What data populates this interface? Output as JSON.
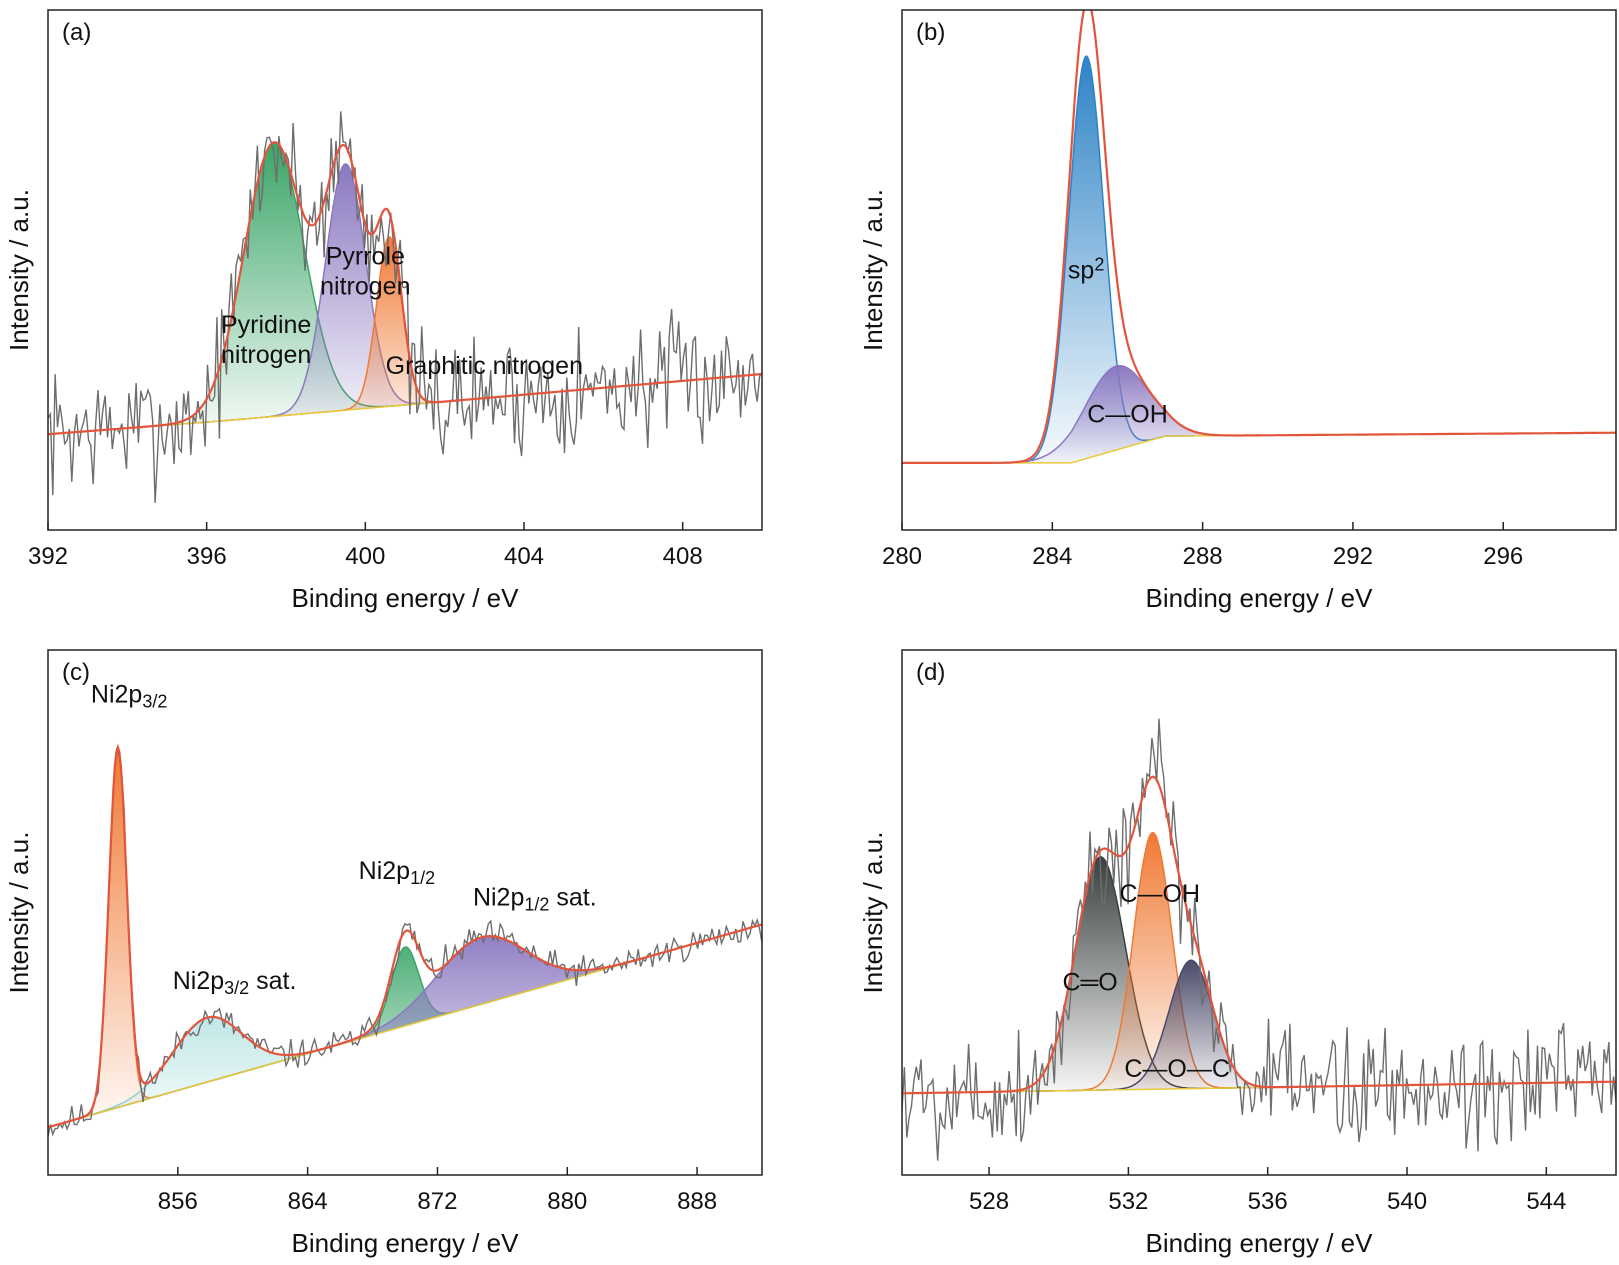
{
  "chart_data": [
    {
      "panel": "(a)",
      "type": "line",
      "xlabel": "Binding energy / eV",
      "ylabel": "Intensity / a.u.",
      "xlim": [
        392,
        410
      ],
      "xticks": [
        392,
        396,
        400,
        404,
        408
      ],
      "ylim": [
        -0.35,
        1.55
      ],
      "background": {
        "x": [
          392,
          396.5,
          410
        ],
        "y": [
          0.0,
          0.05,
          0.22
        ]
      },
      "noise": {
        "amplitude": 0.11,
        "seed": 7
      },
      "peaks": [
        {
          "label_lines": [
            "Pyridine",
            "nitrogen"
          ],
          "center": 397.7,
          "height": 1.0,
          "fwhm": 1.8,
          "color": "#3aa567",
          "label_at": [
            397.5,
            0.37
          ]
        },
        {
          "label_lines": [
            "Pyrrole",
            "nitrogen"
          ],
          "center": 399.5,
          "height": 0.9,
          "fwhm": 1.2,
          "color": "#8b78c0",
          "label_at": [
            400.0,
            0.62
          ]
        },
        {
          "label_lines": [
            "Graphitic nitrogen"
          ],
          "center": 400.6,
          "height": 0.62,
          "fwhm": 0.75,
          "color": "#f07a35",
          "label_at": [
            403.0,
            0.22
          ]
        }
      ]
    },
    {
      "panel": "(b)",
      "type": "line",
      "xlabel": "Binding energy / eV",
      "ylabel": "Intensity / a.u.",
      "xlim": [
        280,
        299
      ],
      "xticks": [
        280,
        284,
        288,
        292,
        296
      ],
      "ylim": [
        -0.2,
        1.35
      ],
      "background": {
        "x": [
          280,
          284.5,
          287.0,
          299
        ],
        "y": [
          0.0,
          0.0,
          0.08,
          0.09
        ]
      },
      "noise": {
        "amplitude": 0.0,
        "seed": 3
      },
      "peaks": [
        {
          "label_lines": [
            "sp2"
          ],
          "center": 284.9,
          "height": 1.2,
          "fwhm": 1.1,
          "color": "#2e83c6",
          "label_at": [
            284.9,
            0.55
          ]
        },
        {
          "label_lines": [
            "C—OH"
          ],
          "center": 285.7,
          "height": 0.25,
          "fwhm": 2.0,
          "color": "#8b78c0",
          "label_at": [
            286.0,
            0.12
          ]
        }
      ]
    },
    {
      "panel": "(c)",
      "type": "line",
      "xlabel": "Binding energy / eV",
      "ylabel": "Intensity / a.u.",
      "xlim": [
        848,
        892
      ],
      "xticks": [
        856,
        864,
        872,
        880,
        888
      ],
      "ylim": [
        -0.2,
        2.0
      ],
      "background": {
        "x": [
          848,
          892
        ],
        "y": [
          0.0,
          0.85
        ]
      },
      "noise": {
        "amplitude": 0.03,
        "seed": 11
      },
      "peaks": [
        {
          "label_lines": [
            "Ni2p3/2"
          ],
          "center": 852.3,
          "height": 1.5,
          "fwhm": 1.3,
          "color": "#f07a35",
          "label_at": [
            853.0,
            1.78
          ]
        },
        {
          "label_lines": [
            "Ni2p3/2 sat."
          ],
          "center": 857.8,
          "height": 0.27,
          "fwhm": 5.0,
          "color": "#8fd3d3",
          "label_at": [
            859.5,
            0.58
          ]
        },
        {
          "label_lines": [
            "Ni2p1/2"
          ],
          "center": 870.0,
          "height": 0.33,
          "fwhm": 2.0,
          "color": "#3aa567",
          "label_at": [
            869.5,
            1.04
          ]
        },
        {
          "label_lines": [
            "Ni2p1/2 sat."
          ],
          "center": 874.7,
          "height": 0.28,
          "fwhm": 6.5,
          "color": "#8b78c0",
          "label_at": [
            878.0,
            0.93
          ]
        }
      ]
    },
    {
      "panel": "(d)",
      "type": "line",
      "xlabel": "Binding energy / eV",
      "ylabel": "Intensity / a.u.",
      "xlim": [
        525.5,
        546
      ],
      "xticks": [
        528,
        532,
        536,
        540,
        544
      ],
      "ylim": [
        -0.35,
        1.9
      ],
      "background": {
        "x": [
          525.5,
          546
        ],
        "y": [
          0.0,
          0.05
        ]
      },
      "noise": {
        "amplitude": 0.13,
        "seed": 5
      },
      "peaks": [
        {
          "label_lines": [
            "C═O"
          ],
          "center": 531.2,
          "height": 1.0,
          "fwhm": 1.7,
          "color": "#3a3f3f",
          "label_at": [
            530.9,
            0.44
          ]
        },
        {
          "label_lines": [
            "C—OH"
          ],
          "center": 532.7,
          "height": 1.1,
          "fwhm": 1.3,
          "color": "#f07a35",
          "label_at": [
            532.9,
            0.82
          ]
        },
        {
          "label_lines": [
            "C—O—C"
          ],
          "center": 533.8,
          "height": 0.55,
          "fwhm": 1.5,
          "color": "#4a4a6a",
          "label_at": [
            533.4,
            0.07
          ]
        }
      ]
    }
  ],
  "colors": {
    "envelope": "#e2553c",
    "raw": "#6d6d6d",
    "background": "#e8c93a"
  }
}
